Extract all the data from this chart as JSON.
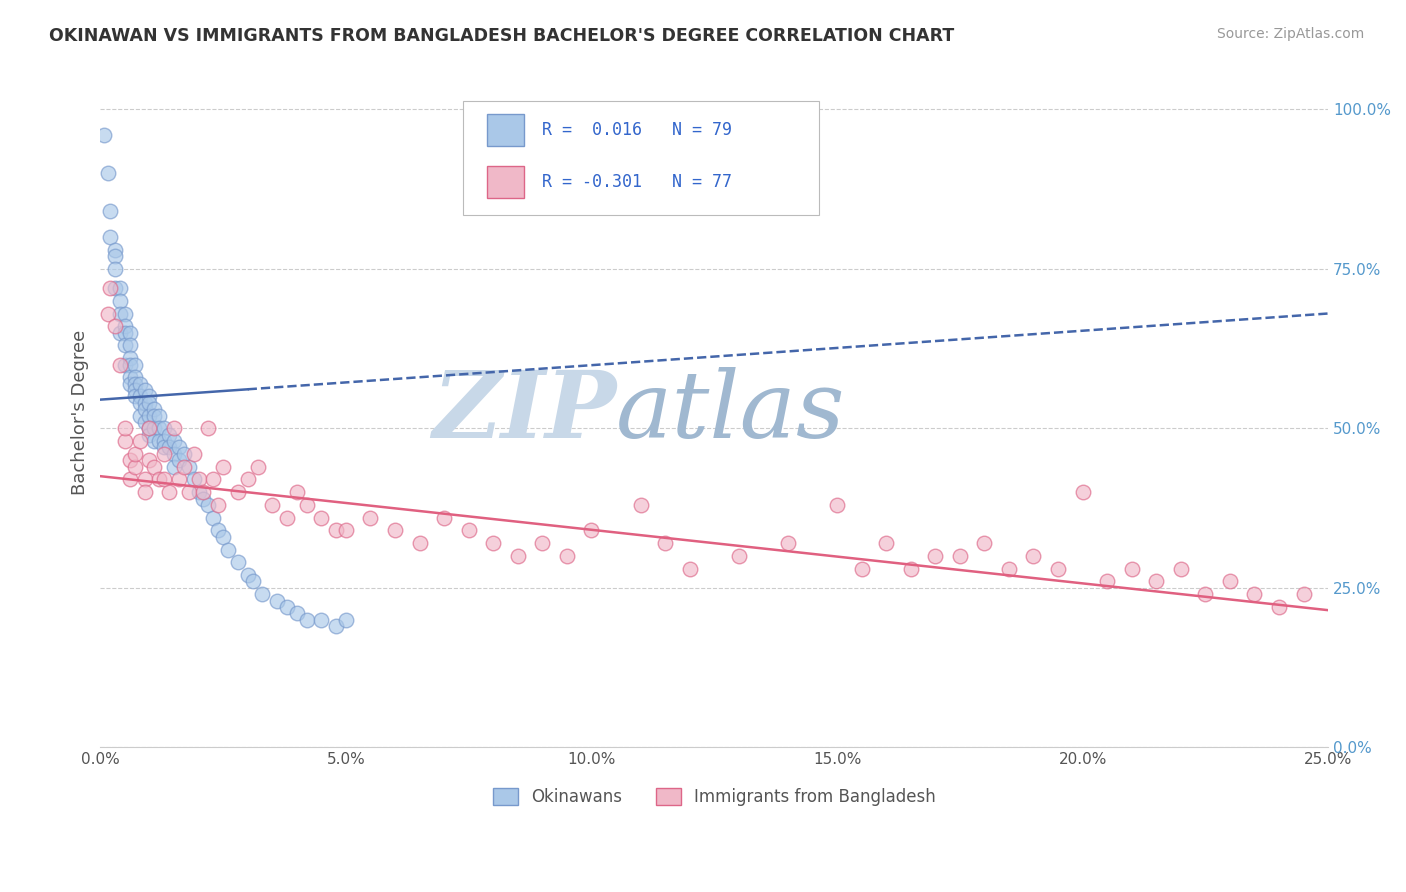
{
  "title": "OKINAWAN VS IMMIGRANTS FROM BANGLADESH BACHELOR'S DEGREE CORRELATION CHART",
  "source": "Source: ZipAtlas.com",
  "ylabel": "Bachelor's Degree",
  "xlim": [
    0.0,
    0.25
  ],
  "ylim": [
    0.0,
    1.05
  ],
  "xticks": [
    0.0,
    0.05,
    0.1,
    0.15,
    0.2,
    0.25
  ],
  "xticklabels": [
    "0.0%",
    "5.0%",
    "10.0%",
    "15.0%",
    "20.0%",
    "25.0%"
  ],
  "yticks_right": [
    0.0,
    0.25,
    0.5,
    0.75,
    1.0
  ],
  "yticklabels_right": [
    "0.0%",
    "25.0%",
    "50.0%",
    "75.0%",
    "100.0%"
  ],
  "grid_color": "#cccccc",
  "background_color": "#ffffff",
  "watermark_zip": "ZIP",
  "watermark_atlas": "atlas",
  "watermark_color_zip": "#c8d8e8",
  "watermark_color_atlas": "#a0b8d0",
  "series1_name": "Okinawans",
  "series1_color": "#aac8e8",
  "series1_edge": "#7799cc",
  "series2_name": "Immigrants from Bangladesh",
  "series2_color": "#f0b8c8",
  "series2_edge": "#dd6688",
  "trend1_color": "#4466aa",
  "trend2_color": "#e06080",
  "trend1_intercept": 0.545,
  "trend1_slope": 0.54,
  "trend2_intercept": 0.425,
  "trend2_slope": -0.84,
  "okinawan_x": [
    0.0008,
    0.0015,
    0.002,
    0.002,
    0.003,
    0.003,
    0.003,
    0.003,
    0.004,
    0.004,
    0.004,
    0.004,
    0.005,
    0.005,
    0.005,
    0.005,
    0.005,
    0.006,
    0.006,
    0.006,
    0.006,
    0.006,
    0.006,
    0.007,
    0.007,
    0.007,
    0.007,
    0.007,
    0.008,
    0.008,
    0.008,
    0.008,
    0.009,
    0.009,
    0.009,
    0.009,
    0.01,
    0.01,
    0.01,
    0.01,
    0.01,
    0.011,
    0.011,
    0.011,
    0.011,
    0.012,
    0.012,
    0.012,
    0.013,
    0.013,
    0.013,
    0.014,
    0.014,
    0.015,
    0.015,
    0.015,
    0.016,
    0.016,
    0.017,
    0.018,
    0.019,
    0.02,
    0.021,
    0.022,
    0.023,
    0.024,
    0.025,
    0.026,
    0.028,
    0.03,
    0.031,
    0.033,
    0.036,
    0.038,
    0.04,
    0.042,
    0.045,
    0.048,
    0.05
  ],
  "okinawan_y": [
    0.96,
    0.9,
    0.84,
    0.8,
    0.78,
    0.77,
    0.75,
    0.72,
    0.72,
    0.7,
    0.68,
    0.65,
    0.68,
    0.66,
    0.65,
    0.63,
    0.6,
    0.65,
    0.63,
    0.61,
    0.6,
    0.58,
    0.57,
    0.6,
    0.58,
    0.57,
    0.56,
    0.55,
    0.57,
    0.55,
    0.54,
    0.52,
    0.56,
    0.54,
    0.53,
    0.51,
    0.55,
    0.54,
    0.52,
    0.5,
    0.49,
    0.53,
    0.52,
    0.5,
    0.48,
    0.52,
    0.5,
    0.48,
    0.5,
    0.48,
    0.47,
    0.49,
    0.47,
    0.48,
    0.46,
    0.44,
    0.47,
    0.45,
    0.46,
    0.44,
    0.42,
    0.4,
    0.39,
    0.38,
    0.36,
    0.34,
    0.33,
    0.31,
    0.29,
    0.27,
    0.26,
    0.24,
    0.23,
    0.22,
    0.21,
    0.2,
    0.2,
    0.19,
    0.2
  ],
  "bangladesh_x": [
    0.0015,
    0.002,
    0.003,
    0.004,
    0.005,
    0.005,
    0.006,
    0.006,
    0.007,
    0.007,
    0.008,
    0.009,
    0.009,
    0.01,
    0.01,
    0.011,
    0.012,
    0.013,
    0.013,
    0.014,
    0.015,
    0.016,
    0.017,
    0.018,
    0.019,
    0.02,
    0.021,
    0.022,
    0.023,
    0.024,
    0.025,
    0.028,
    0.03,
    0.032,
    0.035,
    0.038,
    0.04,
    0.042,
    0.045,
    0.048,
    0.05,
    0.055,
    0.06,
    0.065,
    0.07,
    0.075,
    0.08,
    0.085,
    0.09,
    0.095,
    0.1,
    0.11,
    0.115,
    0.12,
    0.13,
    0.14,
    0.15,
    0.155,
    0.16,
    0.165,
    0.17,
    0.175,
    0.18,
    0.185,
    0.19,
    0.195,
    0.2,
    0.205,
    0.21,
    0.215,
    0.22,
    0.225,
    0.23,
    0.235,
    0.24,
    0.245
  ],
  "bangladesh_y": [
    0.68,
    0.72,
    0.66,
    0.6,
    0.48,
    0.5,
    0.45,
    0.42,
    0.44,
    0.46,
    0.48,
    0.42,
    0.4,
    0.5,
    0.45,
    0.44,
    0.42,
    0.46,
    0.42,
    0.4,
    0.5,
    0.42,
    0.44,
    0.4,
    0.46,
    0.42,
    0.4,
    0.5,
    0.42,
    0.38,
    0.44,
    0.4,
    0.42,
    0.44,
    0.38,
    0.36,
    0.4,
    0.38,
    0.36,
    0.34,
    0.34,
    0.36,
    0.34,
    0.32,
    0.36,
    0.34,
    0.32,
    0.3,
    0.32,
    0.3,
    0.34,
    0.38,
    0.32,
    0.28,
    0.3,
    0.32,
    0.38,
    0.28,
    0.32,
    0.28,
    0.3,
    0.3,
    0.32,
    0.28,
    0.3,
    0.28,
    0.4,
    0.26,
    0.28,
    0.26,
    0.28,
    0.24,
    0.26,
    0.24,
    0.22,
    0.24
  ]
}
